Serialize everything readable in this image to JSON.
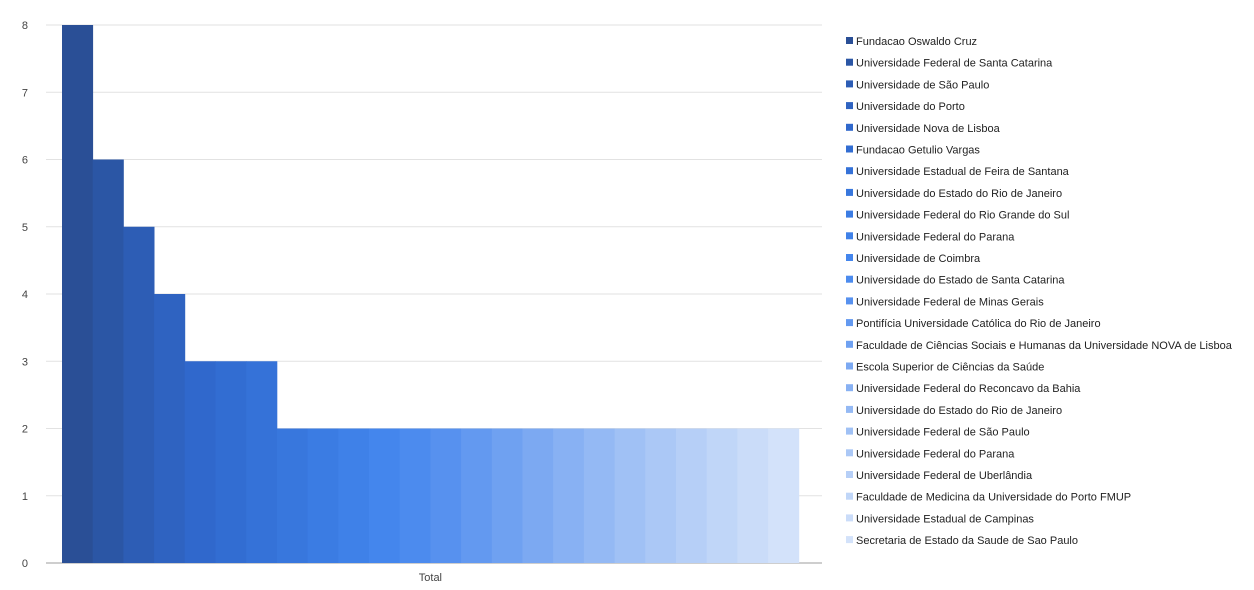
{
  "chart_data": {
    "type": "bar",
    "categories": [
      "Total"
    ],
    "ylim": [
      0,
      8
    ],
    "yticks": [
      0,
      1,
      2,
      3,
      4,
      5,
      6,
      7,
      8
    ],
    "grid": true,
    "legend_position": "right",
    "series": [
      {
        "name": "Fundacao Oswaldo Cruz",
        "values": [
          8
        ],
        "color": "#2a4f96"
      },
      {
        "name": "Universidade Federal de Santa Catarina",
        "values": [
          6
        ],
        "color": "#2b56a5"
      },
      {
        "name": "Universidade de São Paulo",
        "values": [
          5
        ],
        "color": "#2d5db5"
      },
      {
        "name": "Universidade do Porto",
        "values": [
          4
        ],
        "color": "#2f63c1"
      },
      {
        "name": "Universidade Nova de Lisboa",
        "values": [
          3
        ],
        "color": "#3068cc"
      },
      {
        "name": "Fundacao Getulio Vargas",
        "values": [
          3
        ],
        "color": "#326dd2"
      },
      {
        "name": "Universidade Estadual de Feira de Santana",
        "values": [
          3
        ],
        "color": "#3572d8"
      },
      {
        "name": "Universidade do Estado do Rio de Janeiro",
        "values": [
          2
        ],
        "color": "#3877dd"
      },
      {
        "name": "Universidade Federal do Rio Grande do Sul",
        "values": [
          2
        ],
        "color": "#3b7ce3"
      },
      {
        "name": "Universidade Federal do Parana",
        "values": [
          2
        ],
        "color": "#3f81e8"
      },
      {
        "name": "Universidade de Coimbra",
        "values": [
          2
        ],
        "color": "#4486ed"
      },
      {
        "name": "Universidade do Estado de Santa Catarina",
        "values": [
          2
        ],
        "color": "#4c8bee"
      },
      {
        "name": "Universidade Federal de Minas Gerais",
        "values": [
          2
        ],
        "color": "#5791ef"
      },
      {
        "name": "Pontifícia Universidade Católica do Rio de Janeiro",
        "values": [
          2
        ],
        "color": "#6399f0"
      },
      {
        "name": "Faculdade de Ciências Sociais e Humanas da Universidade NOVA de Lisboa",
        "values": [
          2
        ],
        "color": "#6fa1f1"
      },
      {
        "name": "Escola Superior de Ciências da Saúde",
        "values": [
          2
        ],
        "color": "#7ca9f2"
      },
      {
        "name": "Universidade Federal do Reconcavo da Bahia",
        "values": [
          2
        ],
        "color": "#88b1f3"
      },
      {
        "name": "Universidade do Estado do Rio de Janeiro",
        "values": [
          2
        ],
        "color": "#94b9f4"
      },
      {
        "name": "Universidade Federal de São Paulo",
        "values": [
          2
        ],
        "color": "#a0c1f5"
      },
      {
        "name": "Universidade Federal do Parana",
        "values": [
          2
        ],
        "color": "#abc8f6"
      },
      {
        "name": "Universidade Federal de Uberlândia",
        "values": [
          2
        ],
        "color": "#b6cff7"
      },
      {
        "name": "Faculdade de Medicina da Universidade do Porto FMUP",
        "values": [
          2
        ],
        "color": "#c0d6f8"
      },
      {
        "name": "Universidade Estadual de Campinas",
        "values": [
          2
        ],
        "color": "#cadcf9"
      },
      {
        "name": "Secretaria de Estado da Saude de Sao Paulo",
        "values": [
          2
        ],
        "color": "#d3e2fa"
      }
    ]
  }
}
